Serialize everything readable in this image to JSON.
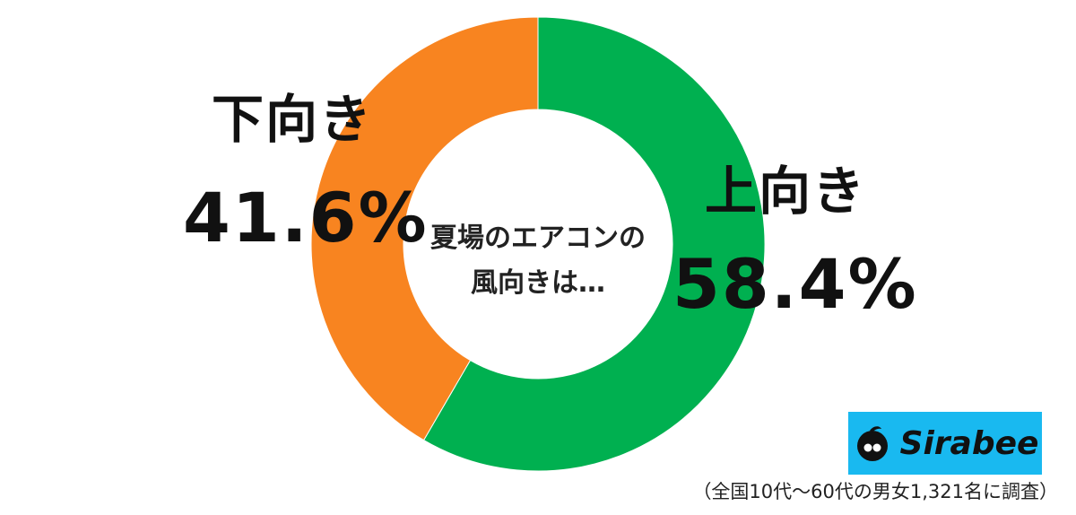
{
  "chart_data": {
    "type": "pie",
    "style": "donut",
    "title": "",
    "center_text": [
      "夏場のエアコンの",
      "風向きは…"
    ],
    "slices": [
      {
        "name": "上向き",
        "value": 58.4,
        "label": "58.4%",
        "color": "#00b050"
      },
      {
        "name": "下向き",
        "value": 41.6,
        "label": "41.6%",
        "color": "#f88420"
      }
    ],
    "start_angle_deg": 0,
    "direction": "clockwise"
  },
  "footnote": "（全国10代～60代の男女1,321名に調査）",
  "logo": {
    "text": "Sirabee",
    "icon": "sirabee-logo-icon",
    "background_color": "#19b9f0"
  }
}
